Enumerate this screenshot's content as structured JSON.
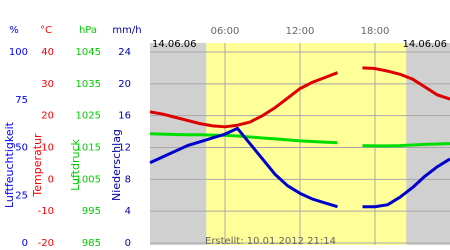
{
  "chart_data": {
    "type": "line",
    "dates": [
      "14.06.06",
      "14.06.06"
    ],
    "footer": "Erstellt: 10.01.2012 21:14",
    "categories": [
      null,
      null,
      null,
      null,
      null,
      null,
      "06:00",
      null,
      null,
      null,
      null,
      null,
      "12:00",
      null,
      null,
      null,
      null,
      null,
      "18:00",
      null,
      null,
      null,
      null,
      null,
      null
    ],
    "highlight_x": [
      4.5,
      20.5
    ],
    "highlight_color": "#ffff99",
    "background": "#d0d0d0",
    "grid": true,
    "axes": [
      {
        "label": "Luftfeuchtigkeit",
        "unit": "%",
        "color": "#0000ff",
        "ylim": [
          0,
          100
        ],
        "yticks": [
          0,
          25,
          50,
          75,
          100
        ]
      },
      {
        "label": "Temperatur",
        "unit": "°C",
        "color": "#ff0000",
        "ylim": [
          -20,
          40
        ],
        "yticks": [
          -20,
          -10,
          0,
          10,
          20,
          30,
          40
        ]
      },
      {
        "label": "Luftdruck",
        "unit": "hPa",
        "color": "#00cc00",
        "ylim": [
          985,
          1045
        ],
        "yticks": [
          985,
          995,
          1005,
          1015,
          1025,
          1035,
          1045
        ]
      },
      {
        "label": "Niederschlag",
        "unit": "mm/h",
        "color": "#0000aa",
        "ylim": [
          0,
          24
        ],
        "yticks": [
          0,
          4,
          8,
          12,
          16,
          20,
          24
        ]
      }
    ],
    "series": [
      {
        "axis": 2,
        "color": "#00dd00",
        "values": [
          1019.3,
          1019.2,
          1019.1,
          1019,
          1019,
          1018.9,
          1018.8,
          1018.6,
          1018.3,
          1018,
          1017.7,
          1017.4,
          1017.1,
          1016.9,
          1016.7,
          1016.5,
          null,
          1015.6,
          1015.5,
          1015.5,
          1015.6,
          1015.8,
          1016,
          1016.1,
          1016.2
        ]
      },
      {
        "axis": 1,
        "color": "#dd0000",
        "values": [
          21.2,
          20.5,
          19.5,
          18.5,
          17.5,
          16.8,
          16.5,
          17,
          18,
          20,
          22.5,
          25.5,
          28.5,
          30.5,
          32,
          33.5,
          null,
          35,
          34.8,
          34,
          33,
          31.5,
          29,
          26.5,
          25.2
        ]
      },
      {
        "axis": 0,
        "color": "#0000cc",
        "values": [
          42,
          45,
          48,
          51,
          53,
          55,
          57,
          60,
          52,
          44,
          36,
          30,
          26,
          23,
          21,
          19,
          null,
          19,
          19,
          20,
          24,
          29,
          35,
          40,
          44
        ]
      }
    ]
  }
}
